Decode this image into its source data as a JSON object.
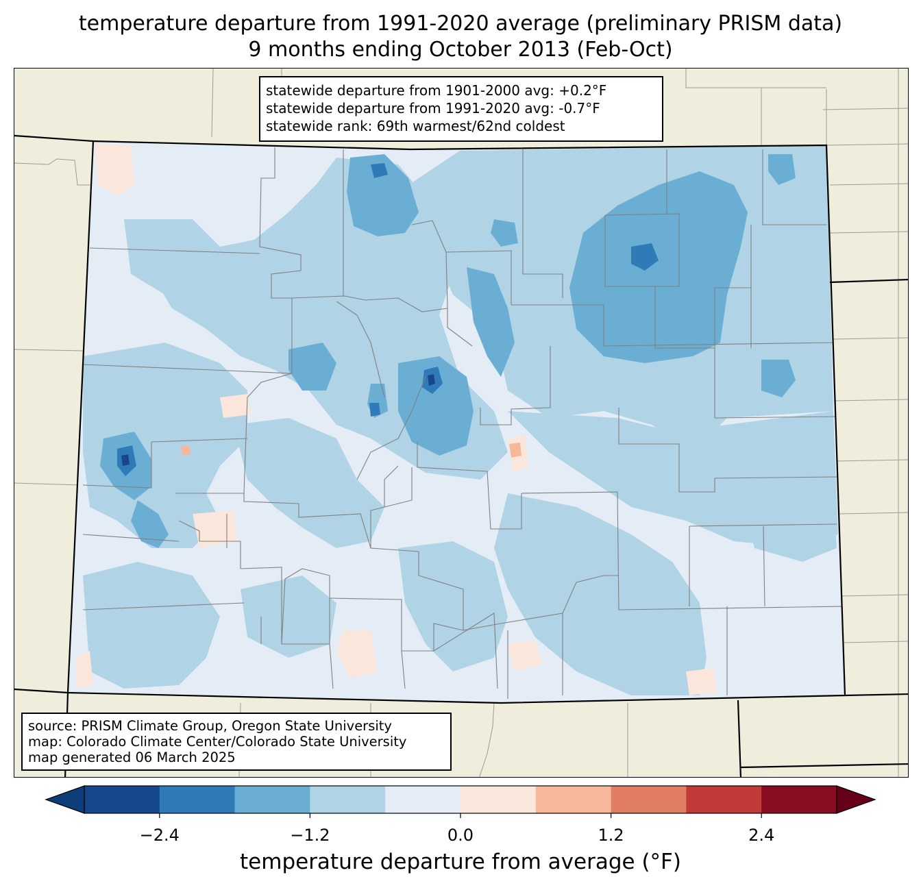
{
  "title": {
    "line1": "temperature departure from 1991-2020 average (preliminary PRISM data)",
    "line2": "9 months ending October 2013 (Feb-Oct)"
  },
  "stats": {
    "line1": "statewide departure from 1901-2000 avg: +0.2°F",
    "line2": "statewide departure from 1991-2020 avg: -0.7°F",
    "line3": "statewide rank: 69th warmest/62nd coldest"
  },
  "source": {
    "line1": "source: PRISM Climate Group, Oregon State University",
    "line2": "map: Colorado Climate Center/Colorado State University",
    "line3": "map generated 06 March 2025"
  },
  "colorbar": {
    "label": "temperature departure from average (°F)",
    "ticks": [
      "−2.4",
      "−1.2",
      "0.0",
      "1.2",
      "2.4"
    ],
    "tick_values": [
      -2.4,
      -1.2,
      0.0,
      1.2,
      2.4
    ],
    "bounds": [
      -3.0,
      3.0
    ],
    "step": 0.6,
    "extend": "both",
    "colors": [
      "#0d3e7a",
      "#15478a",
      "#2f7bb8",
      "#6aaed4",
      "#b0d4e6",
      "#e4edf5",
      "#fbe6dc",
      "#f6b79a",
      "#e07d63",
      "#c03a38",
      "#880d23",
      "#660018"
    ]
  },
  "map": {
    "land_color": "#efeedd",
    "state_border_color": "#000000",
    "county_border_color": "#808080"
  }
}
